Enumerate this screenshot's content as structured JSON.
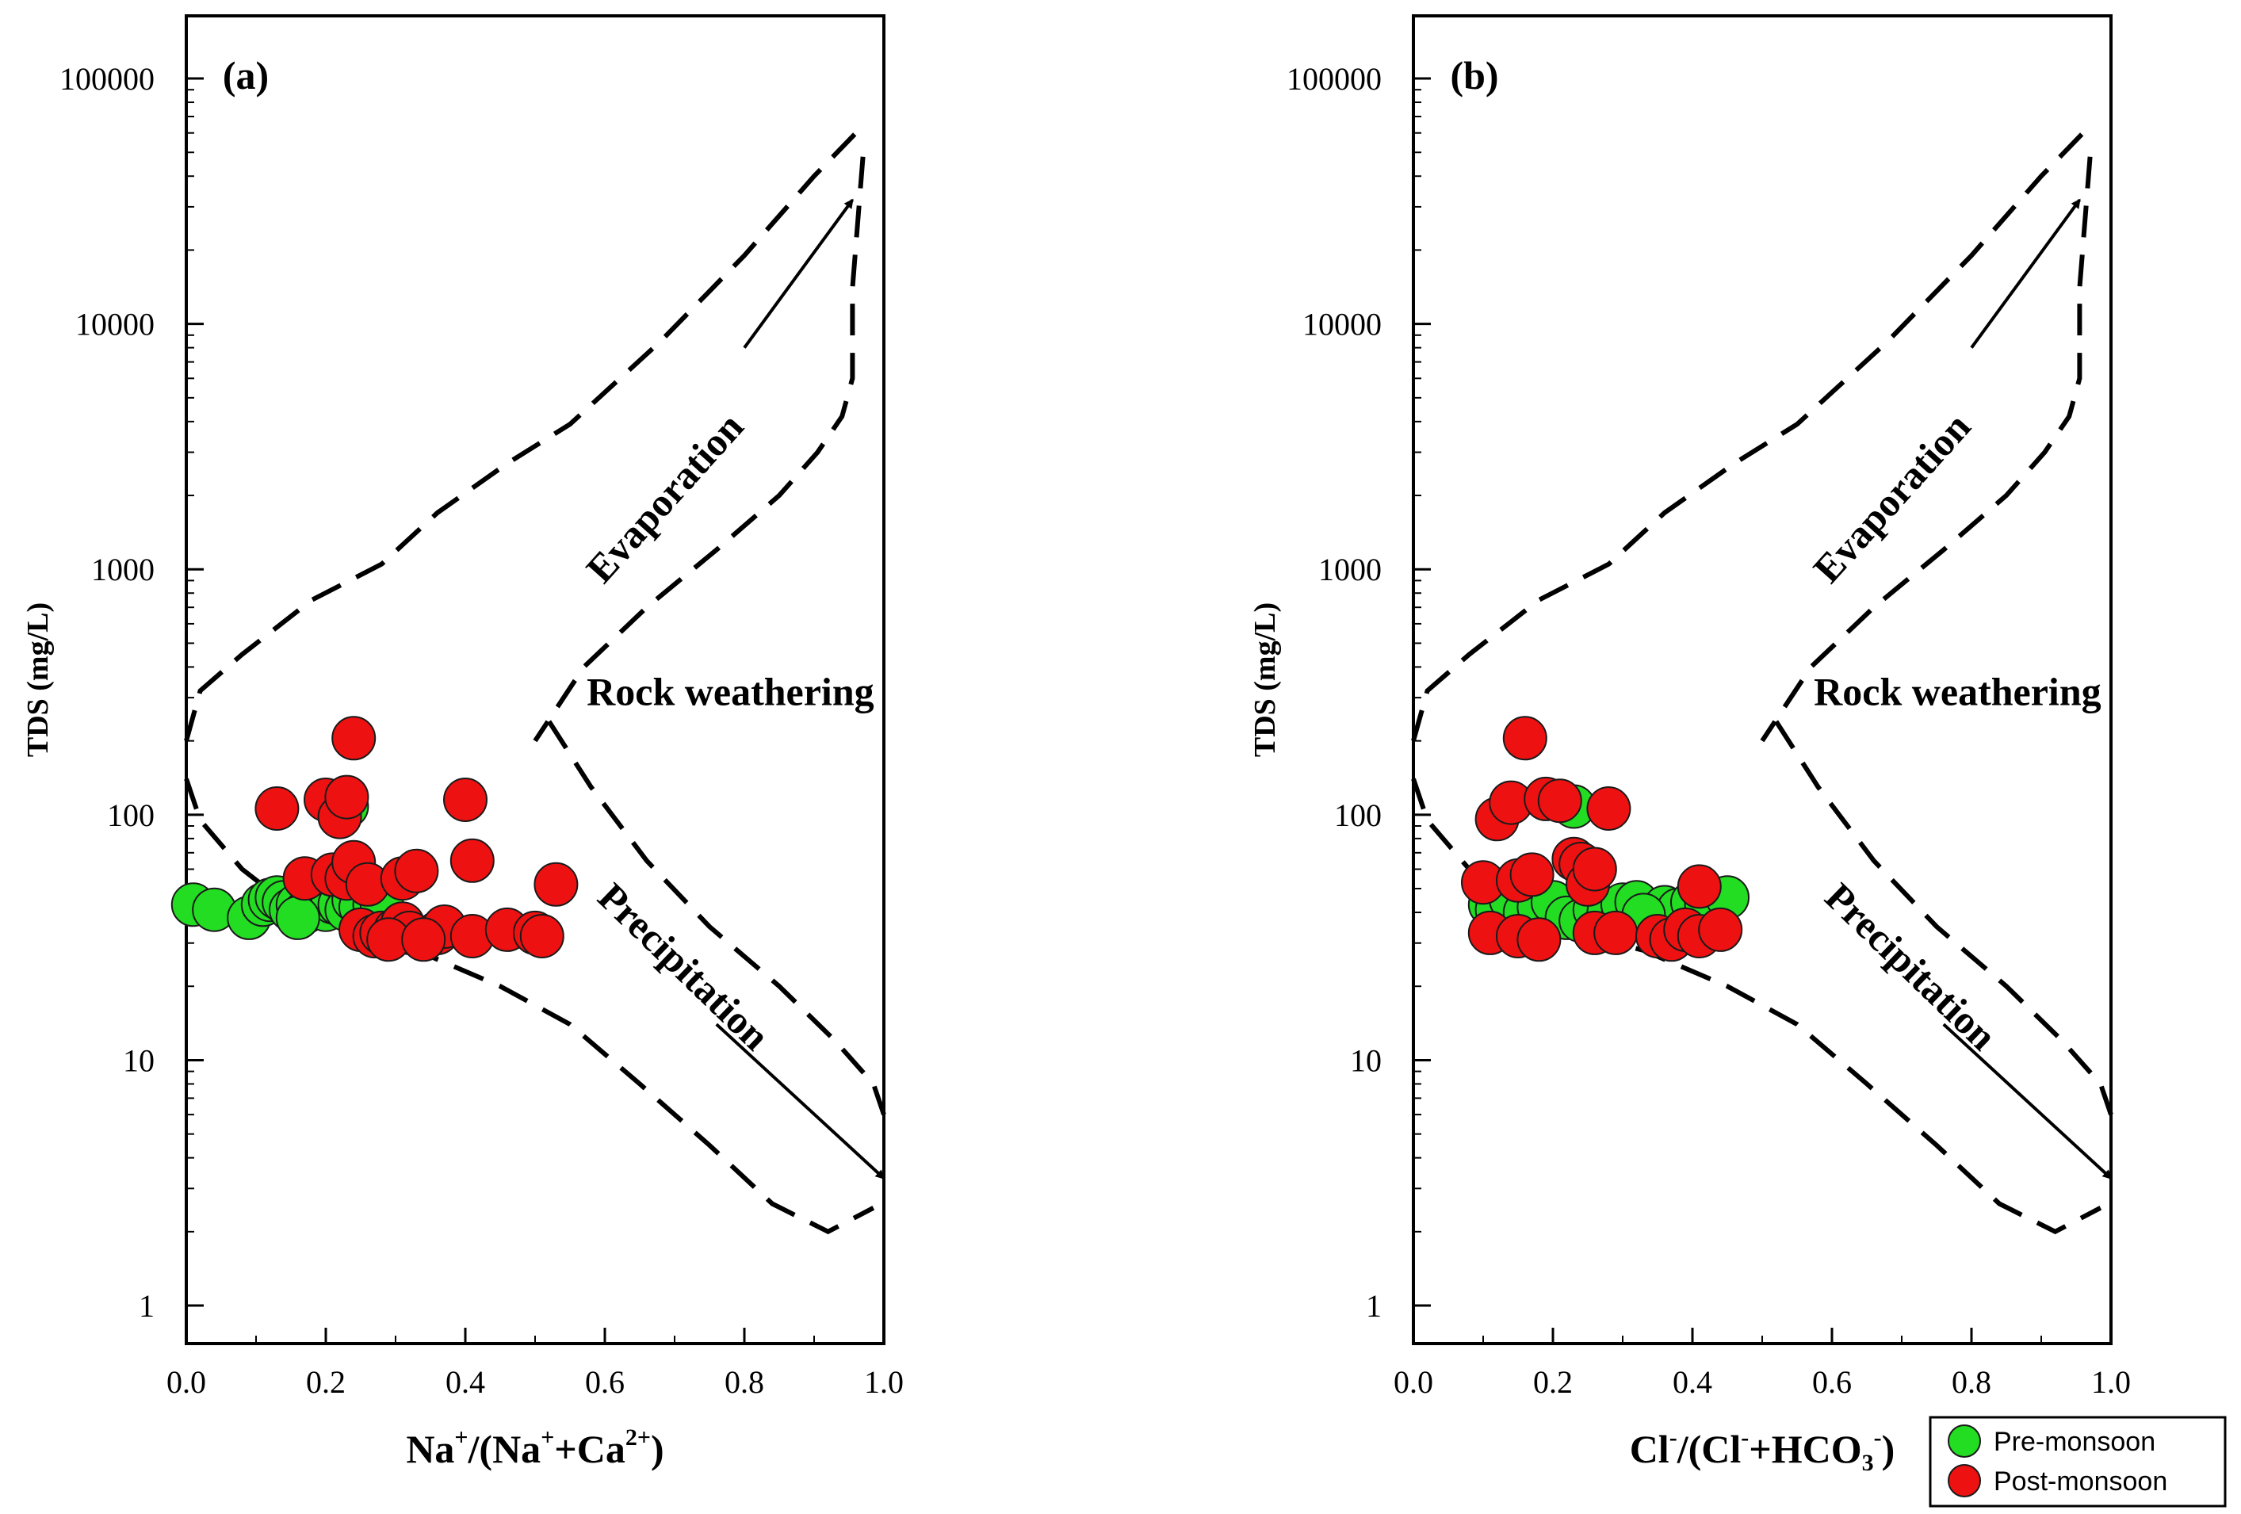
{
  "colors": {
    "pre_monsoon": "#22dd22",
    "post_monsoon": "#ee1111",
    "marker_edge": "#1a1a1a",
    "axis": "#000000"
  },
  "legend": {
    "entries": [
      "Pre-monsoon",
      "Post-monsoon"
    ]
  },
  "chart_data": [
    {
      "type": "scatter",
      "panel_label": "(a)",
      "title": "",
      "xlabel_parts": [
        "Na",
        "+",
        "/(Na",
        "+",
        "+Ca",
        "2+",
        ")"
      ],
      "ylabel": "TDS (mg/L)",
      "xlim": [
        0,
        1
      ],
      "ylim": [
        0.7,
        180000
      ],
      "yscale": "log",
      "x_tick_labels": [
        "0.0",
        "0.2",
        "0.4",
        "0.6",
        "0.8",
        "1.0"
      ],
      "y_tick_labels": [
        "1",
        "10",
        "100",
        "1000",
        "10000",
        "100000"
      ],
      "annotations": [
        "Evaporation",
        "Rock weathering",
        "Precipitation"
      ],
      "series": [
        {
          "name": "Pre-monsoon",
          "points": [
            [
              0.01,
              43
            ],
            [
              0.04,
              41
            ],
            [
              0.09,
              38
            ],
            [
              0.11,
              43
            ],
            [
              0.12,
              45
            ],
            [
              0.13,
              46
            ],
            [
              0.14,
              44
            ],
            [
              0.15,
              41
            ],
            [
              0.16,
              43
            ],
            [
              0.17,
              40
            ],
            [
              0.18,
              44
            ],
            [
              0.19,
              42
            ],
            [
              0.2,
              41
            ],
            [
              0.21,
              44
            ],
            [
              0.22,
              43
            ],
            [
              0.23,
              41
            ],
            [
              0.24,
              45
            ],
            [
              0.25,
              42
            ],
            [
              0.27,
              43
            ],
            [
              0.28,
              44
            ],
            [
              0.16,
              38
            ],
            [
              0.23,
              108
            ]
          ]
        },
        {
          "name": "Post-monsoon",
          "points": [
            [
              0.13,
              106
            ],
            [
              0.2,
              115
            ],
            [
              0.22,
              98
            ],
            [
              0.23,
              118
            ],
            [
              0.24,
              205
            ],
            [
              0.4,
              115
            ],
            [
              0.41,
              65
            ],
            [
              0.17,
              55
            ],
            [
              0.21,
              57
            ],
            [
              0.23,
              55
            ],
            [
              0.24,
              64
            ],
            [
              0.26,
              52
            ],
            [
              0.31,
              55
            ],
            [
              0.33,
              59
            ],
            [
              0.25,
              34
            ],
            [
              0.27,
              32
            ],
            [
              0.28,
              33
            ],
            [
              0.3,
              34
            ],
            [
              0.31,
              36
            ],
            [
              0.32,
              33
            ],
            [
              0.36,
              33
            ],
            [
              0.37,
              35
            ],
            [
              0.41,
              32
            ],
            [
              0.46,
              34
            ],
            [
              0.5,
              33
            ],
            [
              0.51,
              32
            ],
            [
              0.53,
              52
            ],
            [
              0.29,
              31
            ],
            [
              0.34,
              31
            ]
          ]
        }
      ]
    },
    {
      "type": "scatter",
      "panel_label": "(b)",
      "title": "",
      "xlabel_parts": [
        "Cl",
        "-",
        "/(Cl",
        "-",
        "+HCO",
        "3",
        "-",
        ")"
      ],
      "ylabel": "TDS (mg/L)",
      "xlim": [
        0,
        1
      ],
      "ylim": [
        0.7,
        180000
      ],
      "yscale": "log",
      "x_tick_labels": [
        "0.0",
        "0.2",
        "0.4",
        "0.6",
        "0.8",
        "1.0"
      ],
      "y_tick_labels": [
        "1",
        "10",
        "100",
        "1000",
        "10000",
        "100000"
      ],
      "annotations": [
        "Evaporation",
        "Rock weathering",
        "Precipitation"
      ],
      "series": [
        {
          "name": "Pre-monsoon",
          "points": [
            [
              0.11,
              43
            ],
            [
              0.12,
              41
            ],
            [
              0.14,
              45
            ],
            [
              0.16,
              40
            ],
            [
              0.18,
              42
            ],
            [
              0.2,
              44
            ],
            [
              0.22,
              38
            ],
            [
              0.23,
              108
            ],
            [
              0.24,
              37
            ],
            [
              0.26,
              41
            ],
            [
              0.28,
              40
            ],
            [
              0.3,
              43
            ],
            [
              0.32,
              44
            ],
            [
              0.34,
              38
            ],
            [
              0.36,
              42
            ],
            [
              0.38,
              41
            ],
            [
              0.4,
              44
            ],
            [
              0.42,
              43
            ],
            [
              0.45,
              46
            ],
            [
              0.33,
              39
            ]
          ]
        },
        {
          "name": "Post-monsoon",
          "points": [
            [
              0.12,
              96
            ],
            [
              0.14,
              112
            ],
            [
              0.16,
              205
            ],
            [
              0.19,
              116
            ],
            [
              0.21,
              114
            ],
            [
              0.28,
              106
            ],
            [
              0.1,
              53
            ],
            [
              0.15,
              54
            ],
            [
              0.17,
              57
            ],
            [
              0.23,
              66
            ],
            [
              0.24,
              63
            ],
            [
              0.25,
              52
            ],
            [
              0.26,
              60
            ],
            [
              0.11,
              33
            ],
            [
              0.15,
              32
            ],
            [
              0.18,
              31
            ],
            [
              0.26,
              33
            ],
            [
              0.29,
              33
            ],
            [
              0.35,
              32
            ],
            [
              0.37,
              31
            ],
            [
              0.39,
              34
            ],
            [
              0.41,
              32
            ],
            [
              0.41,
              51
            ],
            [
              0.44,
              34
            ]
          ]
        }
      ]
    }
  ]
}
